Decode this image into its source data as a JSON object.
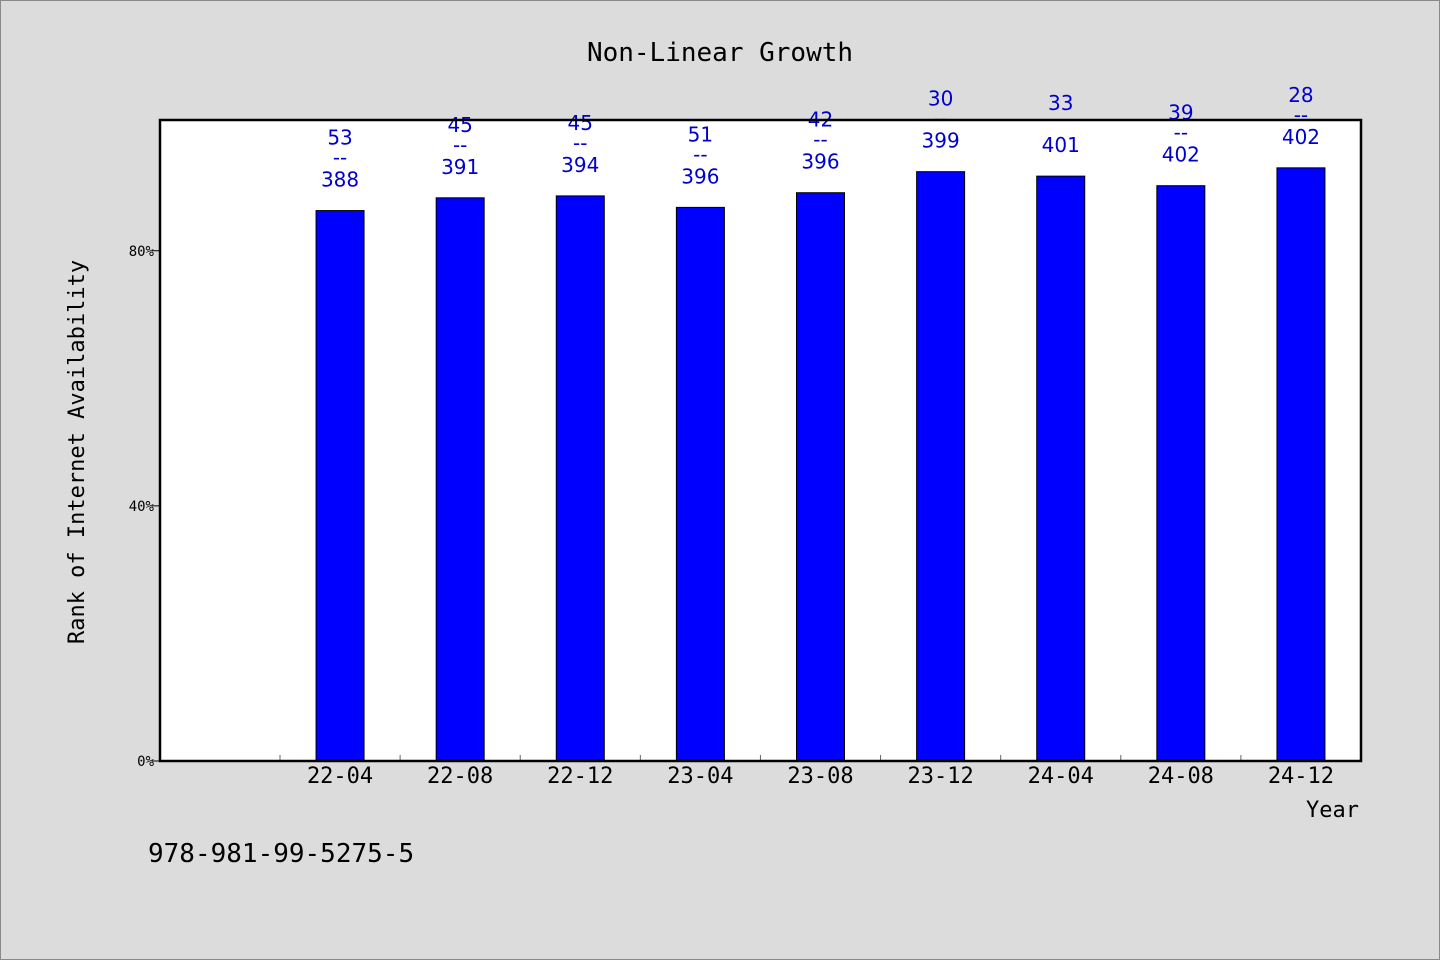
{
  "chart_data": {
    "type": "bar",
    "title": "Non-Linear Growth",
    "xlabel": "Year",
    "ylabel": "Rank of Internet Availability",
    "categories": [
      "22-04",
      "22-08",
      "22-12",
      "23-04",
      "23-08",
      "23-12",
      "24-04",
      "24-08",
      "24-12"
    ],
    "values": [
      86.3,
      88.3,
      88.6,
      86.8,
      89.1,
      92.4,
      91.7,
      90.2,
      93.0
    ],
    "label_top": [
      "53",
      "45",
      "45",
      "51",
      "42",
      "30",
      "33",
      "39",
      "28"
    ],
    "label_bottom": [
      "388",
      "391",
      "394",
      "396",
      "396",
      "399",
      "401",
      "402",
      "402"
    ],
    "label_separator": [
      "--",
      "--",
      "--",
      "--",
      "--",
      "--",
      "",
      "--",
      "--"
    ],
    "y_ticks": [
      {
        "value": 0,
        "label": "0%"
      },
      {
        "value": 40,
        "label": "40%"
      },
      {
        "value": 80,
        "label": "80%"
      }
    ],
    "ylim": [
      0,
      100.5
    ],
    "bar_color": "#0000ff",
    "label_color": "#0000cc",
    "grid": false,
    "legend": "none"
  },
  "footnote": "978-981-99-5275-5"
}
